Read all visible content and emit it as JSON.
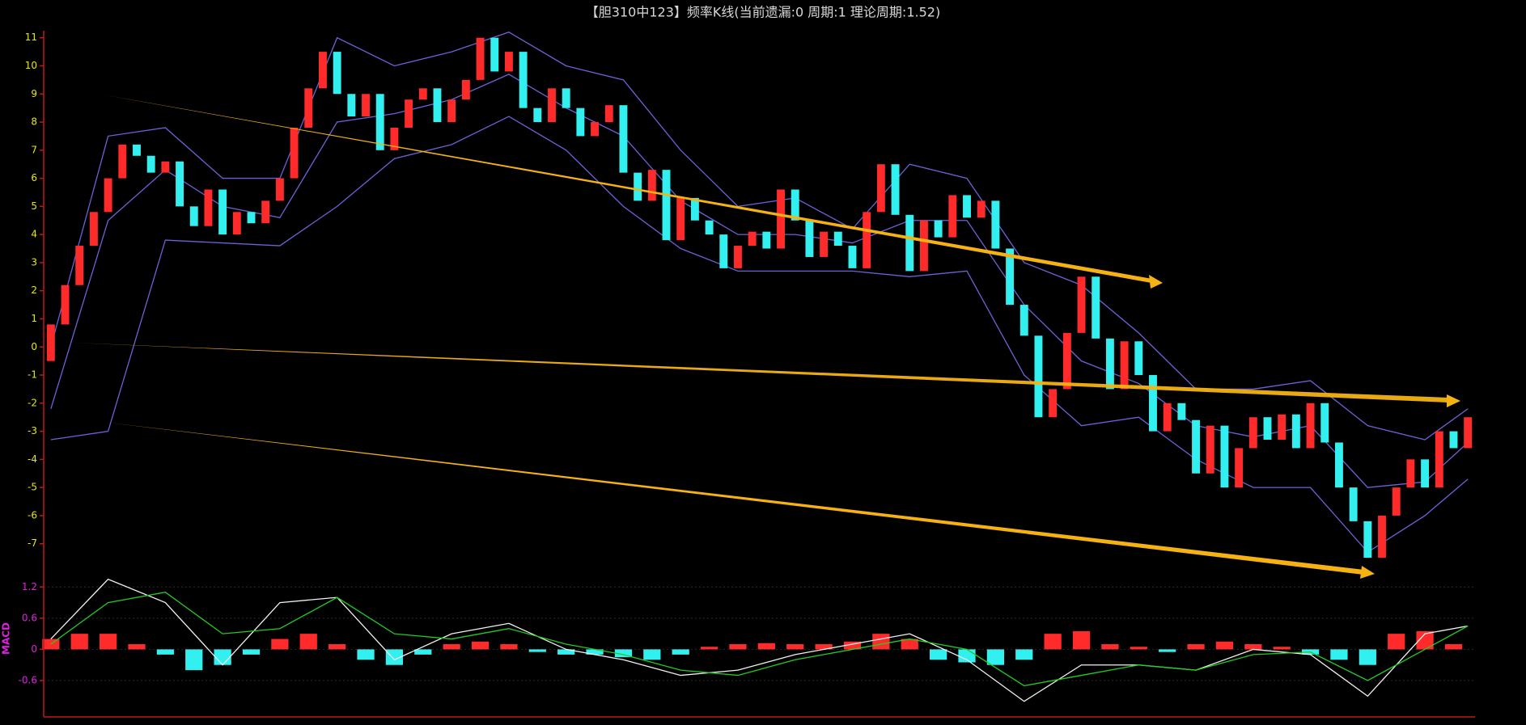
{
  "chart_data": [
    {
      "type": "candlestick",
      "title": "【胆310中123】频率K线(当前遗漏:0 周期:1 理论周期:1.52)",
      "up_color": "#ff2a2a",
      "down_color": "#33f0f0",
      "xlim": [
        -0.5,
        99.5
      ],
      "ylim": [
        -7.9,
        11.25
      ],
      "yticks": [
        -7,
        -6,
        -5,
        -4,
        -3,
        -2,
        -1,
        0,
        1,
        2,
        3,
        4,
        5,
        6,
        7,
        8,
        9,
        10,
        11
      ],
      "open": [
        -0.5,
        0.8,
        2.2,
        3.6,
        4.8,
        6.0,
        7.2,
        6.8,
        6.2,
        6.6,
        5.0,
        4.3,
        5.6,
        4.0,
        4.8,
        4.4,
        5.2,
        6.0,
        7.8,
        9.2,
        10.5,
        9.0,
        8.2,
        9.0,
        7.0,
        7.8,
        8.8,
        9.2,
        8.0,
        8.8,
        9.5,
        11.0,
        9.8,
        10.5,
        8.5,
        8.0,
        9.2,
        8.5,
        7.5,
        8.0,
        8.6,
        6.2,
        5.2,
        6.3,
        3.8,
        5.3,
        4.5,
        4.0,
        2.8,
        3.6,
        4.1,
        3.5,
        5.6,
        4.5,
        3.2,
        4.1,
        3.6,
        2.8,
        4.8,
        6.5,
        4.7,
        2.7,
        4.5,
        3.9,
        5.4,
        4.6,
        5.2,
        3.5,
        1.5,
        0.4,
        -2.5,
        -1.5,
        0.5,
        2.5,
        0.3,
        -1.5,
        0.2,
        -1.0,
        -3.0,
        -2.0,
        -2.6,
        -4.5,
        -2.8,
        -5.0,
        -3.6,
        -2.5,
        -3.3,
        -2.4,
        -3.6,
        -2.0,
        -3.4,
        -5.0,
        -6.2,
        -7.5,
        -6.0,
        -5.0,
        -4.0,
        -5.0,
        -3.0,
        -3.6
      ],
      "close": [
        0.8,
        2.2,
        3.6,
        4.8,
        6.0,
        7.2,
        6.8,
        6.2,
        6.6,
        5.0,
        4.3,
        5.6,
        4.0,
        4.8,
        4.4,
        5.2,
        6.0,
        7.8,
        9.2,
        10.5,
        9.0,
        8.2,
        9.0,
        7.0,
        7.8,
        8.8,
        9.2,
        8.0,
        8.8,
        9.5,
        11.0,
        9.8,
        10.5,
        8.5,
        8.0,
        9.2,
        8.5,
        7.5,
        8.0,
        8.6,
        6.2,
        5.2,
        6.3,
        3.8,
        5.3,
        4.5,
        4.0,
        2.8,
        3.6,
        4.1,
        3.5,
        5.6,
        4.5,
        3.2,
        4.1,
        3.6,
        2.8,
        4.8,
        6.5,
        4.7,
        2.7,
        4.5,
        3.9,
        5.4,
        4.6,
        5.2,
        3.5,
        1.5,
        0.4,
        -2.5,
        -1.5,
        0.5,
        2.5,
        0.3,
        -1.5,
        0.2,
        -1.0,
        -3.0,
        -2.0,
        -2.6,
        -4.5,
        -2.8,
        -5.0,
        -3.6,
        -2.5,
        -3.3,
        -2.4,
        -3.6,
        -2.0,
        -3.4,
        -5.0,
        -6.2,
        -7.5,
        -6.0,
        -5.0,
        -4.0,
        -5.0,
        -3.0,
        -3.6,
        -2.5
      ],
      "lines_x": [
        0,
        4,
        8,
        12,
        16,
        20,
        24,
        28,
        32,
        36,
        40,
        44,
        48,
        52,
        56,
        60,
        64,
        68,
        72,
        76,
        80,
        84,
        88,
        92,
        96,
        99
      ],
      "series": [
        {
          "color": "#6b62d8",
          "values": [
            0,
            7.5,
            7.8,
            6.0,
            6.0,
            11.0,
            10.0,
            10.5,
            11.2,
            10.0,
            9.5,
            7.0,
            5.0,
            5.3,
            4.2,
            6.5,
            6.0,
            3.0,
            2.2,
            0.5,
            -1.5,
            -1.5,
            -1.2,
            -2.8,
            -3.3,
            -2.2
          ]
        },
        {
          "color": "#6b62d8",
          "values": [
            -2.2,
            4.5,
            6.3,
            5.0,
            4.6,
            8.0,
            8.3,
            8.8,
            9.7,
            8.5,
            7.5,
            5.2,
            4.0,
            4.0,
            3.7,
            4.5,
            4.5,
            1.5,
            -0.5,
            -1.3,
            -2.8,
            -3.2,
            -2.8,
            -5.0,
            -4.8,
            -3.4
          ]
        },
        {
          "color": "#6b62d8",
          "values": [
            -3.3,
            -3.0,
            3.8,
            3.7,
            3.6,
            5.0,
            6.7,
            7.2,
            8.2,
            7.0,
            5.0,
            3.5,
            2.7,
            2.7,
            2.7,
            2.5,
            2.7,
            -1.0,
            -2.8,
            -2.5,
            -4.0,
            -5.0,
            -5.0,
            -7.3,
            -6.0,
            -4.7
          ]
        }
      ]
    },
    {
      "type": "macd",
      "ylabel": "MACD",
      "up_color": "#ff2a2a",
      "down_color": "#33f0f0",
      "xlim": [
        -0.5,
        99.5
      ],
      "ylim": [
        -1.3,
        1.5
      ],
      "yticks": [
        1.2,
        0.6,
        0,
        -0.6
      ],
      "grid": true,
      "lines_x": [
        0,
        4,
        8,
        12,
        16,
        20,
        24,
        28,
        32,
        36,
        40,
        44,
        48,
        52,
        56,
        60,
        64,
        68,
        72,
        76,
        80,
        84,
        88,
        92,
        96,
        99
      ],
      "series": [
        {
          "color": "#f2f2f2",
          "values": [
            0.2,
            1.35,
            0.9,
            -0.3,
            0.9,
            1.0,
            -0.2,
            0.3,
            0.5,
            0.0,
            -0.2,
            -0.5,
            -0.4,
            -0.1,
            0.1,
            0.3,
            -0.2,
            -1.0,
            -0.3,
            -0.3,
            -0.4,
            0.0,
            -0.1,
            -0.9,
            0.3,
            0.45
          ]
        },
        {
          "color": "#22cc22",
          "values": [
            0.1,
            0.9,
            1.1,
            0.3,
            0.4,
            1.0,
            0.3,
            0.2,
            0.4,
            0.1,
            -0.1,
            -0.4,
            -0.5,
            -0.2,
            0.0,
            0.2,
            0.0,
            -0.7,
            -0.5,
            -0.3,
            -0.4,
            -0.1,
            -0.05,
            -0.6,
            0.0,
            0.45
          ]
        }
      ],
      "hist_x": [
        0,
        2,
        4,
        6,
        8,
        10,
        12,
        14,
        16,
        18,
        20,
        22,
        24,
        26,
        28,
        30,
        32,
        34,
        36,
        38,
        40,
        42,
        44,
        46,
        48,
        50,
        52,
        54,
        56,
        58,
        60,
        62,
        64,
        66,
        68,
        70,
        72,
        74,
        76,
        78,
        80,
        82,
        84,
        86,
        88,
        90,
        92,
        94,
        96,
        98
      ],
      "hist": [
        0.2,
        0.3,
        0.3,
        0.1,
        -0.1,
        -0.4,
        -0.3,
        -0.1,
        0.2,
        0.3,
        0.1,
        -0.2,
        -0.3,
        -0.1,
        0.1,
        0.15,
        0.1,
        -0.05,
        -0.1,
        -0.1,
        -0.15,
        -0.2,
        -0.1,
        0.05,
        0.1,
        0.12,
        0.1,
        0.1,
        0.15,
        0.3,
        0.2,
        -0.2,
        -0.25,
        -0.3,
        -0.2,
        0.3,
        0.35,
        0.1,
        0.05,
        -0.05,
        0.1,
        0.15,
        0.1,
        0.05,
        -0.1,
        -0.2,
        -0.3,
        0.3,
        0.35,
        0.1
      ]
    }
  ]
}
